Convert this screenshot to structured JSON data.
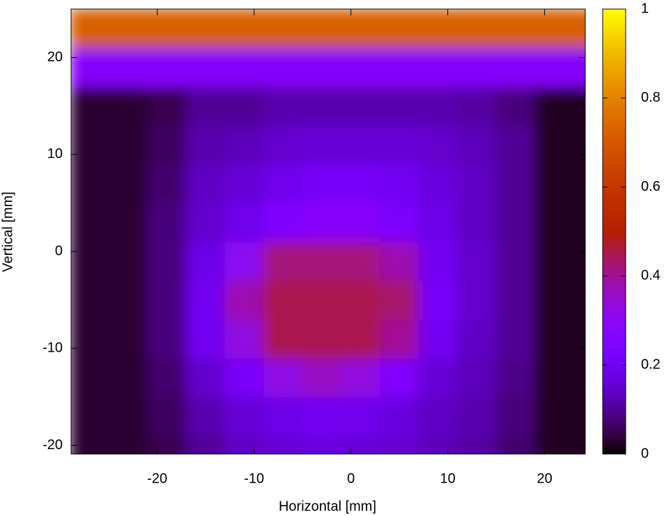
{
  "chart_data": {
    "type": "heatmap",
    "xlabel": "Horizontal [mm]",
    "ylabel": "Vertical [mm]",
    "colormap": "gnuplot",
    "x": [
      -27,
      -23,
      -19,
      -15,
      -11,
      -7,
      -3,
      1,
      5,
      9,
      13,
      17,
      21,
      25
    ],
    "y": [
      -21,
      -17,
      -13,
      -9,
      -5,
      -1,
      3,
      7,
      11,
      15,
      19,
      23
    ],
    "z": [
      [
        0.03,
        0.03,
        0.05,
        0.1,
        0.14,
        0.16,
        0.17,
        0.16,
        0.15,
        0.13,
        0.11,
        0.07,
        0.02,
        0.02
      ],
      [
        0.03,
        0.03,
        0.06,
        0.12,
        0.16,
        0.18,
        0.2,
        0.19,
        0.17,
        0.14,
        0.12,
        0.08,
        0.02,
        0.02
      ],
      [
        0.03,
        0.03,
        0.07,
        0.15,
        0.22,
        0.32,
        0.36,
        0.33,
        0.25,
        0.16,
        0.13,
        0.09,
        0.02,
        0.02
      ],
      [
        0.03,
        0.03,
        0.08,
        0.2,
        0.33,
        0.45,
        0.45,
        0.45,
        0.4,
        0.2,
        0.14,
        0.1,
        0.02,
        0.02
      ],
      [
        0.03,
        0.03,
        0.08,
        0.2,
        0.38,
        0.45,
        0.45,
        0.45,
        0.43,
        0.22,
        0.15,
        0.1,
        0.02,
        0.02
      ],
      [
        0.03,
        0.03,
        0.08,
        0.18,
        0.3,
        0.42,
        0.42,
        0.42,
        0.38,
        0.2,
        0.15,
        0.1,
        0.02,
        0.02
      ],
      [
        0.03,
        0.03,
        0.08,
        0.15,
        0.19,
        0.25,
        0.28,
        0.28,
        0.24,
        0.18,
        0.14,
        0.1,
        0.02,
        0.02
      ],
      [
        0.03,
        0.03,
        0.07,
        0.14,
        0.16,
        0.19,
        0.22,
        0.22,
        0.2,
        0.17,
        0.14,
        0.1,
        0.02,
        0.02
      ],
      [
        0.03,
        0.03,
        0.06,
        0.12,
        0.13,
        0.15,
        0.16,
        0.16,
        0.16,
        0.15,
        0.13,
        0.1,
        0.02,
        0.02
      ],
      [
        0.03,
        0.03,
        0.05,
        0.1,
        0.1,
        0.12,
        0.12,
        0.12,
        0.12,
        0.12,
        0.11,
        0.08,
        0.02,
        0.02
      ],
      [
        0.27,
        0.27,
        0.27,
        0.27,
        0.27,
        0.27,
        0.27,
        0.27,
        0.27,
        0.27,
        0.27,
        0.27,
        0.27,
        0.27
      ],
      [
        0.72,
        0.72,
        0.72,
        0.72,
        0.72,
        0.72,
        0.72,
        0.72,
        0.72,
        0.72,
        0.72,
        0.72,
        0.72,
        0.72
      ]
    ],
    "xlim": [
      -28.9,
      24.2
    ],
    "ylim": [
      -20.9,
      25
    ],
    "xticks": [
      -20,
      -10,
      0,
      10,
      20
    ],
    "yticks": [
      -20,
      -10,
      0,
      10,
      20
    ],
    "zlim": [
      0,
      1
    ],
    "zticks": [
      0,
      0.2,
      0.4,
      0.6,
      0.8,
      1
    ]
  }
}
